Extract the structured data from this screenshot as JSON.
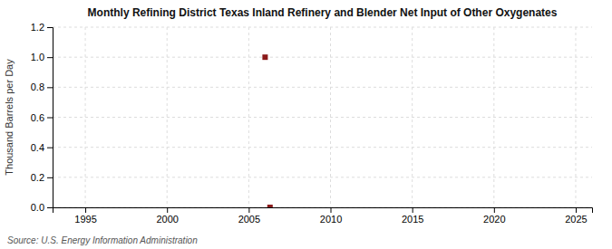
{
  "chart_data": {
    "type": "scatter",
    "title": "Monthly Refining District Texas Inland Refinery and Blender Net Input of Other Oxygenates",
    "ylabel": "Thousand Barrels per Day",
    "source": "Source: U.S. Energy Information Administration",
    "x": [
      2006,
      2006.3
    ],
    "values": [
      1,
      0
    ],
    "color": "#8B1A1A",
    "marker": "square",
    "xlim": [
      1993,
      2026
    ],
    "ylim": [
      0,
      1.2
    ],
    "xticks": [
      1995,
      2000,
      2005,
      2010,
      2015,
      2020,
      2025
    ],
    "yticks": [
      {
        "value": 0,
        "label": "0.0"
      },
      0.2,
      0.4,
      0.6,
      0.8,
      {
        "value": 1,
        "label": "1.0"
      },
      1.2
    ],
    "grid": true
  }
}
